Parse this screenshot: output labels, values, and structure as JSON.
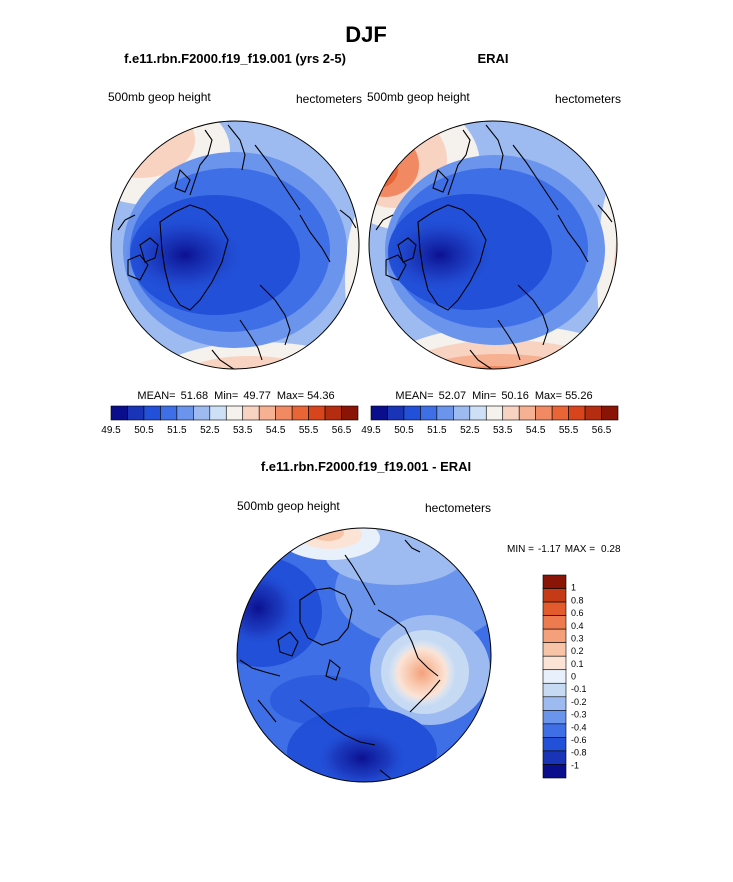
{
  "title": "DJF",
  "chart_data": [
    {
      "type": "heatmap",
      "projection": "north-polar-stereographic",
      "title": "f.e11.rbn.F2000.f19_f19.001 (yrs 2-5)",
      "left_label": "500mb geop height",
      "right_label": "hectometers",
      "stats": {
        "mean_label": "MEAN=",
        "mean": "51.68",
        "min_label": "Min=",
        "min": "49.77",
        "max_label": "Max=",
        "max": "54.36"
      },
      "colorbar": {
        "orientation": "horizontal",
        "tick_labels": [
          "49.5",
          "50.5",
          "51.5",
          "52.5",
          "53.5",
          "54.5",
          "55.5",
          "56.5"
        ],
        "levels": [
          49.5,
          50.0,
          50.5,
          51.0,
          51.5,
          52.0,
          52.5,
          53.0,
          53.5,
          54.0,
          54.5,
          55.0,
          55.5,
          56.0,
          56.5
        ]
      }
    },
    {
      "type": "heatmap",
      "projection": "north-polar-stereographic",
      "title": "ERAI",
      "left_label": "500mb geop height",
      "right_label": "hectometers",
      "stats": {
        "mean_label": "MEAN=",
        "mean": "52.07",
        "min_label": "Min=",
        "min": "50.16",
        "max_label": "Max=",
        "max": "55.26"
      },
      "colorbar": {
        "orientation": "horizontal",
        "tick_labels": [
          "49.5",
          "50.5",
          "51.5",
          "52.5",
          "53.5",
          "54.5",
          "55.5",
          "56.5"
        ],
        "levels": [
          49.5,
          50.0,
          50.5,
          51.0,
          51.5,
          52.0,
          52.5,
          53.0,
          53.5,
          54.0,
          54.5,
          55.0,
          55.5,
          56.0,
          56.5
        ]
      }
    },
    {
      "type": "heatmap",
      "projection": "north-polar-stereographic",
      "title": "f.e11.rbn.F2000.f19_f19.001 - ERAI",
      "left_label": "500mb geop height",
      "right_label": "hectometers",
      "stats": {
        "min_label": "MIN =",
        "min": "-1.17",
        "max_label": "MAX =",
        "max": "0.28"
      },
      "colorbar": {
        "orientation": "vertical",
        "tick_labels": [
          "1",
          "0.8",
          "0.6",
          "0.4",
          "0.3",
          "0.2",
          "0.1",
          "0",
          "-0.1",
          "-0.2",
          "-0.3",
          "-0.4",
          "-0.6",
          "-0.8",
          "-1"
        ],
        "levels": [
          1,
          0.8,
          0.6,
          0.4,
          0.3,
          0.2,
          0.1,
          0,
          -0.1,
          -0.2,
          -0.3,
          -0.4,
          -0.6,
          -0.8,
          -1
        ]
      }
    }
  ],
  "colors": {
    "abs_palette": [
      "#0a0d8c",
      "#1a34b8",
      "#2250d8",
      "#3f6fe6",
      "#6b94ec",
      "#9dbbf1",
      "#cde0f6",
      "#f5f1ec",
      "#f9d3c2",
      "#f6b092",
      "#f18a62",
      "#ea6536",
      "#d8451d",
      "#b52d10",
      "#8a1405"
    ],
    "diff_palette": [
      "#0a0d8c",
      "#1a34b8",
      "#2250d8",
      "#3f6fe6",
      "#6b94ec",
      "#9dbbf1",
      "#c6daf3",
      "#e8f1fb",
      "#fbe3d5",
      "#f8c4a8",
      "#f4a07b",
      "#ee7a4f",
      "#e35a2c",
      "#c53a17",
      "#8a1405"
    ],
    "coast": "#000000"
  }
}
